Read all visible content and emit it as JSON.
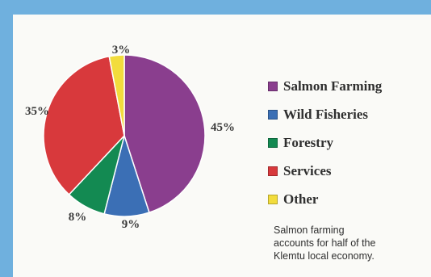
{
  "chart_data": {
    "type": "pie",
    "slices": [
      {
        "name": "Salmon Farming",
        "value": 45,
        "label": "45%",
        "color": "#8a3e8e"
      },
      {
        "name": "Wild Fisheries",
        "value": 9,
        "label": "9%",
        "color": "#3b6fb5"
      },
      {
        "name": "Forestry",
        "value": 8,
        "label": "8%",
        "color": "#138a52"
      },
      {
        "name": "Services",
        "value": 35,
        "label": "35%",
        "color": "#d8393c"
      },
      {
        "name": "Other",
        "value": 3,
        "label": "3%",
        "color": "#f2dc3c"
      }
    ],
    "legend_position": "right"
  },
  "note": {
    "lines": [
      "Salmon farming",
      "accounts for half of the",
      "Klemtu local economy."
    ]
  }
}
